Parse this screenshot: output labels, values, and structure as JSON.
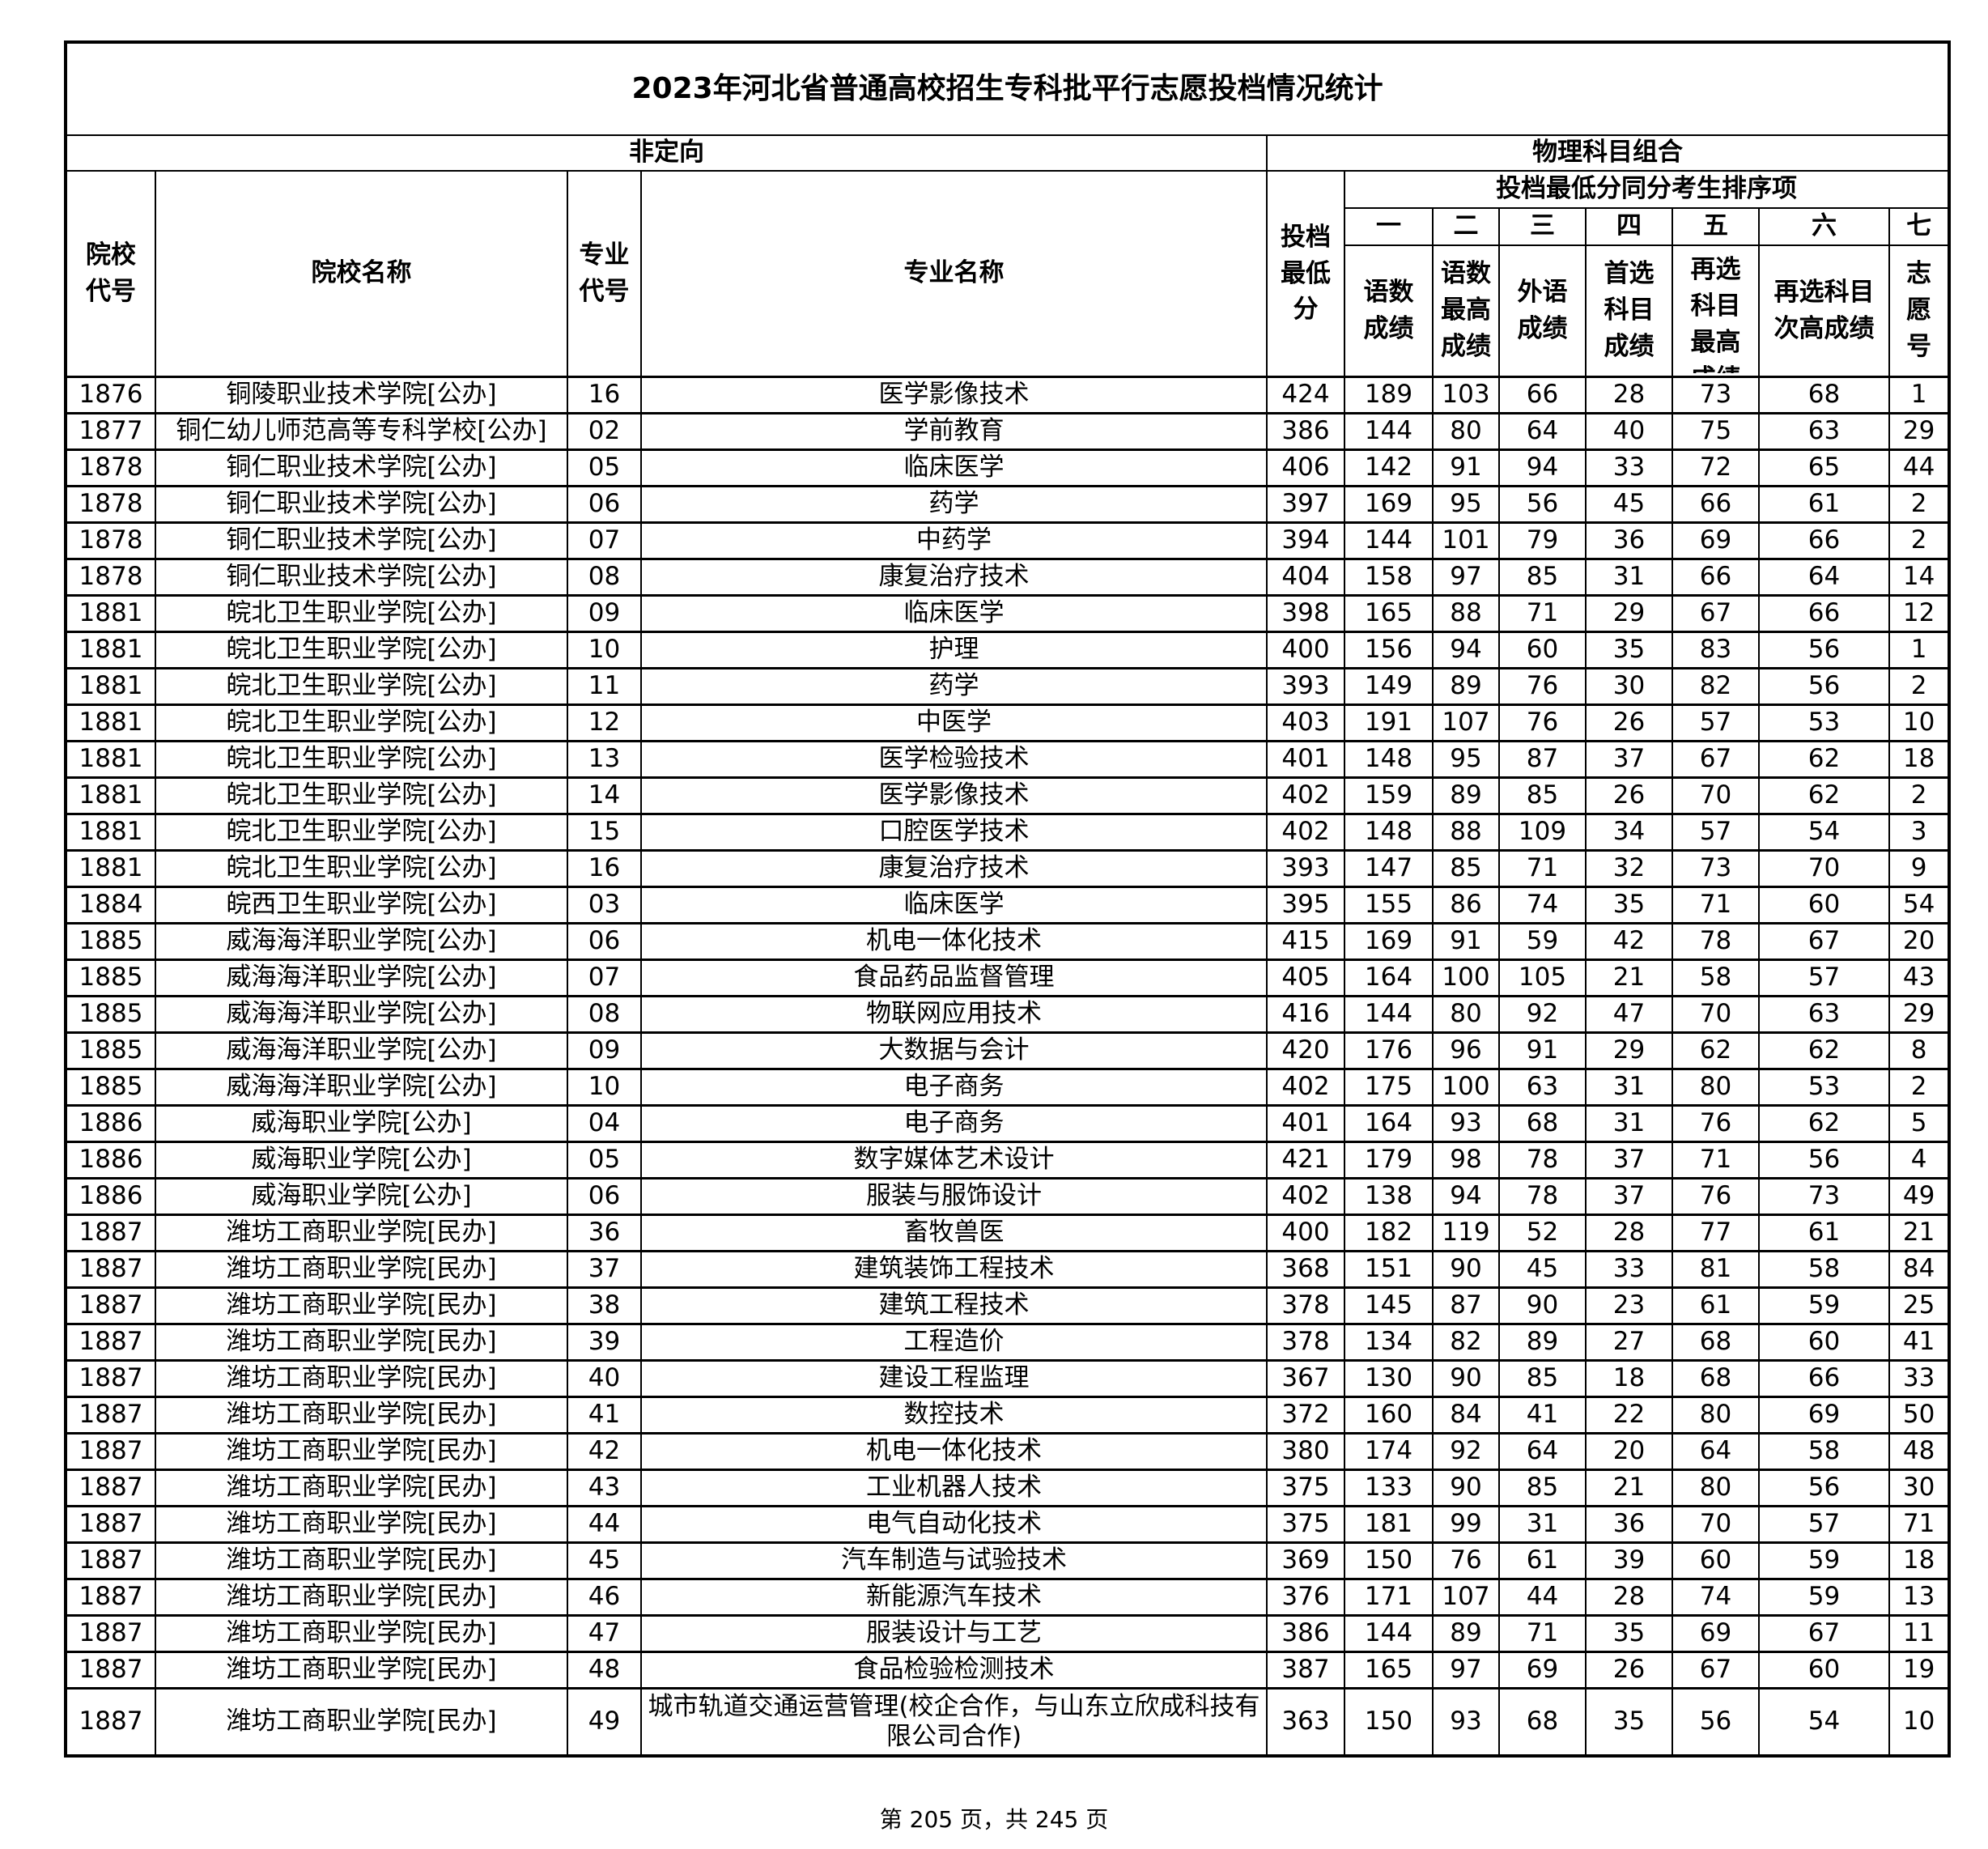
{
  "title": "2023年河北省普通高校招生专科批平行志愿投档情况统计",
  "group_left": "非定向",
  "group_right": "物理科目组合",
  "headers": {
    "school_code": "院校代号",
    "school_name": "院校名称",
    "major_code": "专业代号",
    "major_name": "专业名称",
    "min_score": "投档最低分",
    "tiebreak_group": "投档最低分同分考生排序项",
    "order": [
      "一",
      "二",
      "三",
      "四",
      "五",
      "六",
      "七"
    ],
    "tiebreak": [
      "语数成绩",
      "语数最高成绩",
      "外语成绩",
      "首选科目成绩",
      "再选科目最高成绩",
      "再选科目次高成绩",
      "志愿号"
    ]
  },
  "rows": [
    [
      "1876",
      "铜陵职业技术学院[公办]",
      "16",
      "医学影像技术",
      "424",
      "189",
      "103",
      "66",
      "28",
      "73",
      "68",
      "1"
    ],
    [
      "1877",
      "铜仁幼儿师范高等专科学校[公办]",
      "02",
      "学前教育",
      "386",
      "144",
      "80",
      "64",
      "40",
      "75",
      "63",
      "29"
    ],
    [
      "1878",
      "铜仁职业技术学院[公办]",
      "05",
      "临床医学",
      "406",
      "142",
      "91",
      "94",
      "33",
      "72",
      "65",
      "44"
    ],
    [
      "1878",
      "铜仁职业技术学院[公办]",
      "06",
      "药学",
      "397",
      "169",
      "95",
      "56",
      "45",
      "66",
      "61",
      "2"
    ],
    [
      "1878",
      "铜仁职业技术学院[公办]",
      "07",
      "中药学",
      "394",
      "144",
      "101",
      "79",
      "36",
      "69",
      "66",
      "2"
    ],
    [
      "1878",
      "铜仁职业技术学院[公办]",
      "08",
      "康复治疗技术",
      "404",
      "158",
      "97",
      "85",
      "31",
      "66",
      "64",
      "14"
    ],
    [
      "1881",
      "皖北卫生职业学院[公办]",
      "09",
      "临床医学",
      "398",
      "165",
      "88",
      "71",
      "29",
      "67",
      "66",
      "12"
    ],
    [
      "1881",
      "皖北卫生职业学院[公办]",
      "10",
      "护理",
      "400",
      "156",
      "94",
      "60",
      "35",
      "83",
      "56",
      "1"
    ],
    [
      "1881",
      "皖北卫生职业学院[公办]",
      "11",
      "药学",
      "393",
      "149",
      "89",
      "76",
      "30",
      "82",
      "56",
      "2"
    ],
    [
      "1881",
      "皖北卫生职业学院[公办]",
      "12",
      "中医学",
      "403",
      "191",
      "107",
      "76",
      "26",
      "57",
      "53",
      "10"
    ],
    [
      "1881",
      "皖北卫生职业学院[公办]",
      "13",
      "医学检验技术",
      "401",
      "148",
      "95",
      "87",
      "37",
      "67",
      "62",
      "18"
    ],
    [
      "1881",
      "皖北卫生职业学院[公办]",
      "14",
      "医学影像技术",
      "402",
      "159",
      "89",
      "85",
      "26",
      "70",
      "62",
      "2"
    ],
    [
      "1881",
      "皖北卫生职业学院[公办]",
      "15",
      "口腔医学技术",
      "402",
      "148",
      "88",
      "109",
      "34",
      "57",
      "54",
      "3"
    ],
    [
      "1881",
      "皖北卫生职业学院[公办]",
      "16",
      "康复治疗技术",
      "393",
      "147",
      "85",
      "71",
      "32",
      "73",
      "70",
      "9"
    ],
    [
      "1884",
      "皖西卫生职业学院[公办]",
      "03",
      "临床医学",
      "395",
      "155",
      "86",
      "74",
      "35",
      "71",
      "60",
      "54"
    ],
    [
      "1885",
      "威海海洋职业学院[公办]",
      "06",
      "机电一体化技术",
      "415",
      "169",
      "91",
      "59",
      "42",
      "78",
      "67",
      "20"
    ],
    [
      "1885",
      "威海海洋职业学院[公办]",
      "07",
      "食品药品监督管理",
      "405",
      "164",
      "100",
      "105",
      "21",
      "58",
      "57",
      "43"
    ],
    [
      "1885",
      "威海海洋职业学院[公办]",
      "08",
      "物联网应用技术",
      "416",
      "144",
      "80",
      "92",
      "47",
      "70",
      "63",
      "29"
    ],
    [
      "1885",
      "威海海洋职业学院[公办]",
      "09",
      "大数据与会计",
      "420",
      "176",
      "96",
      "91",
      "29",
      "62",
      "62",
      "8"
    ],
    [
      "1885",
      "威海海洋职业学院[公办]",
      "10",
      "电子商务",
      "402",
      "175",
      "100",
      "63",
      "31",
      "80",
      "53",
      "2"
    ],
    [
      "1886",
      "威海职业学院[公办]",
      "04",
      "电子商务",
      "401",
      "164",
      "93",
      "68",
      "31",
      "76",
      "62",
      "5"
    ],
    [
      "1886",
      "威海职业学院[公办]",
      "05",
      "数字媒体艺术设计",
      "421",
      "179",
      "98",
      "78",
      "37",
      "71",
      "56",
      "4"
    ],
    [
      "1886",
      "威海职业学院[公办]",
      "06",
      "服装与服饰设计",
      "402",
      "138",
      "94",
      "78",
      "37",
      "76",
      "73",
      "49"
    ],
    [
      "1887",
      "潍坊工商职业学院[民办]",
      "36",
      "畜牧兽医",
      "400",
      "182",
      "119",
      "52",
      "28",
      "77",
      "61",
      "21"
    ],
    [
      "1887",
      "潍坊工商职业学院[民办]",
      "37",
      "建筑装饰工程技术",
      "368",
      "151",
      "90",
      "45",
      "33",
      "81",
      "58",
      "84"
    ],
    [
      "1887",
      "潍坊工商职业学院[民办]",
      "38",
      "建筑工程技术",
      "378",
      "145",
      "87",
      "90",
      "23",
      "61",
      "59",
      "25"
    ],
    [
      "1887",
      "潍坊工商职业学院[民办]",
      "39",
      "工程造价",
      "378",
      "134",
      "82",
      "89",
      "27",
      "68",
      "60",
      "41"
    ],
    [
      "1887",
      "潍坊工商职业学院[民办]",
      "40",
      "建设工程监理",
      "367",
      "130",
      "90",
      "85",
      "18",
      "68",
      "66",
      "33"
    ],
    [
      "1887",
      "潍坊工商职业学院[民办]",
      "41",
      "数控技术",
      "372",
      "160",
      "84",
      "41",
      "22",
      "80",
      "69",
      "50"
    ],
    [
      "1887",
      "潍坊工商职业学院[民办]",
      "42",
      "机电一体化技术",
      "380",
      "174",
      "92",
      "64",
      "20",
      "64",
      "58",
      "48"
    ],
    [
      "1887",
      "潍坊工商职业学院[民办]",
      "43",
      "工业机器人技术",
      "375",
      "133",
      "90",
      "85",
      "21",
      "80",
      "56",
      "30"
    ],
    [
      "1887",
      "潍坊工商职业学院[民办]",
      "44",
      "电气自动化技术",
      "375",
      "181",
      "99",
      "31",
      "36",
      "70",
      "57",
      "71"
    ],
    [
      "1887",
      "潍坊工商职业学院[民办]",
      "45",
      "汽车制造与试验技术",
      "369",
      "150",
      "76",
      "61",
      "39",
      "60",
      "59",
      "18"
    ],
    [
      "1887",
      "潍坊工商职业学院[民办]",
      "46",
      "新能源汽车技术",
      "376",
      "171",
      "107",
      "44",
      "28",
      "74",
      "59",
      "13"
    ],
    [
      "1887",
      "潍坊工商职业学院[民办]",
      "47",
      "服装设计与工艺",
      "386",
      "144",
      "89",
      "71",
      "35",
      "69",
      "67",
      "11"
    ],
    [
      "1887",
      "潍坊工商职业学院[民办]",
      "48",
      "食品检验检测技术",
      "387",
      "165",
      "97",
      "69",
      "26",
      "67",
      "60",
      "19"
    ],
    [
      "1887",
      "潍坊工商职业学院[民办]",
      "49",
      "城市轨道交通运营管理(校企合作，与山东立欣成科技有限公司合作)",
      "363",
      "150",
      "93",
      "68",
      "35",
      "56",
      "54",
      "10"
    ]
  ],
  "footer": "第 205 页，共 245 页"
}
